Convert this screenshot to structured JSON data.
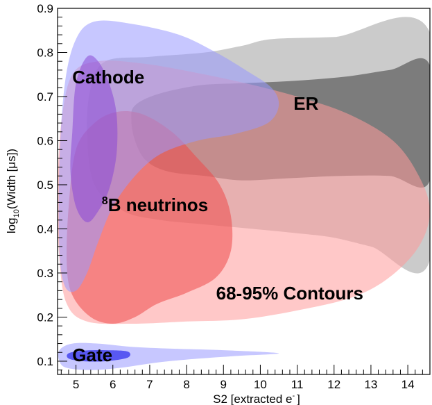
{
  "chart_data": {
    "type": "area",
    "xlabel": "S2 [extracted e",
    "xlabel_sup": "-",
    "xlabel_close": "]",
    "ylabel_prefix": "log",
    "ylabel_sub": "10",
    "ylabel_suffix": "(Width [μs])",
    "xlim": [
      4.5,
      14.6
    ],
    "ylim": [
      0.07,
      0.9
    ],
    "x_ticks": [
      5,
      6,
      7,
      8,
      9,
      10,
      11,
      12,
      13,
      14
    ],
    "y_ticks": [
      0.1,
      0.2,
      0.3,
      0.4,
      0.5,
      0.6,
      0.7,
      0.8,
      0.9
    ],
    "grid": false,
    "series": [
      {
        "name": "ER",
        "contours": [
          {
            "level": "95%",
            "color": "#c2c2c2",
            "opacity": 0.85,
            "points": [
              [
                5.8,
                0.78
              ],
              [
                7.0,
                0.79
              ],
              [
                8.5,
                0.8
              ],
              [
                9.5,
                0.815
              ],
              [
                10.3,
                0.83
              ],
              [
                12.0,
                0.835
              ],
              [
                14.6,
                0.845
              ],
              [
                14.6,
                0.33
              ],
              [
                13.0,
                0.36
              ],
              [
                12.0,
                0.38
              ],
              [
                11.0,
                0.39
              ],
              [
                9.8,
                0.4
              ],
              [
                8.5,
                0.41
              ],
              [
                7.3,
                0.42
              ],
              [
                6.3,
                0.44
              ],
              [
                5.5,
                0.5
              ],
              [
                5.3,
                0.62
              ],
              [
                5.4,
                0.72
              ]
            ]
          },
          {
            "level": "68%",
            "color": "#6f6f6f",
            "opacity": 0.85,
            "points": [
              [
                6.6,
                0.68
              ],
              [
                7.2,
                0.705
              ],
              [
                8.3,
                0.725
              ],
              [
                9.4,
                0.73
              ],
              [
                10.8,
                0.735
              ],
              [
                12.3,
                0.745
              ],
              [
                13.5,
                0.76
              ],
              [
                14.6,
                0.77
              ],
              [
                14.6,
                0.51
              ],
              [
                13.5,
                0.52
              ],
              [
                12.2,
                0.52
              ],
              [
                10.8,
                0.515
              ],
              [
                9.5,
                0.51
              ],
              [
                8.5,
                0.52
              ],
              [
                7.5,
                0.53
              ],
              [
                6.9,
                0.555
              ],
              [
                6.6,
                0.6
              ],
              [
                6.5,
                0.65
              ]
            ]
          }
        ]
      },
      {
        "name": "8B neutrinos",
        "contours": [
          {
            "level": "95%",
            "color": "#ff9a9a",
            "opacity": 0.55,
            "points": [
              [
                4.6,
                0.64
              ],
              [
                4.9,
                0.75
              ],
              [
                5.6,
                0.78
              ],
              [
                6.8,
                0.775
              ],
              [
                8.2,
                0.755
              ],
              [
                9.6,
                0.73
              ],
              [
                11.0,
                0.7
              ],
              [
                12.4,
                0.66
              ],
              [
                13.6,
                0.6
              ],
              [
                14.3,
                0.52
              ],
              [
                14.6,
                0.44
              ],
              [
                14.3,
                0.36
              ],
              [
                13.5,
                0.29
              ],
              [
                12.5,
                0.245
              ],
              [
                11.0,
                0.215
              ],
              [
                9.5,
                0.195
              ],
              [
                8.0,
                0.19
              ],
              [
                6.5,
                0.185
              ],
              [
                5.3,
                0.19
              ],
              [
                4.75,
                0.23
              ],
              [
                4.55,
                0.33
              ],
              [
                4.5,
                0.48
              ]
            ]
          },
          {
            "level": "68%",
            "color": "#ee4a4a",
            "opacity": 0.55,
            "points": [
              [
                5.0,
                0.58
              ],
              [
                5.5,
                0.64
              ],
              [
                6.1,
                0.665
              ],
              [
                6.8,
                0.66
              ],
              [
                7.6,
                0.62
              ],
              [
                8.3,
                0.56
              ],
              [
                8.9,
                0.5
              ],
              [
                9.2,
                0.43
              ],
              [
                9.2,
                0.35
              ],
              [
                8.8,
                0.29
              ],
              [
                8.0,
                0.255
              ],
              [
                7.2,
                0.23
              ],
              [
                6.6,
                0.2
              ],
              [
                6.0,
                0.185
              ],
              [
                5.4,
                0.2
              ],
              [
                4.9,
                0.25
              ],
              [
                4.75,
                0.32
              ],
              [
                4.8,
                0.45
              ]
            ]
          }
        ]
      },
      {
        "name": "Cathode",
        "contours": [
          {
            "level": "95%",
            "color": "#9999ff",
            "opacity": 0.55,
            "points": [
              [
                4.55,
                0.55
              ],
              [
                4.7,
                0.73
              ],
              [
                5.0,
                0.83
              ],
              [
                5.5,
                0.87
              ],
              [
                6.5,
                0.865
              ],
              [
                7.8,
                0.84
              ],
              [
                8.8,
                0.8
              ],
              [
                9.6,
                0.76
              ],
              [
                10.3,
                0.72
              ],
              [
                10.5,
                0.68
              ],
              [
                10.2,
                0.64
              ],
              [
                9.3,
                0.615
              ],
              [
                8.3,
                0.6
              ],
              [
                7.3,
                0.57
              ],
              [
                6.6,
                0.52
              ],
              [
                6.0,
                0.45
              ],
              [
                5.6,
                0.37
              ],
              [
                5.3,
                0.3
              ],
              [
                5.0,
                0.26
              ],
              [
                4.7,
                0.27
              ],
              [
                4.55,
                0.35
              ]
            ]
          },
          {
            "level": "68%",
            "color": "#8a48d6",
            "opacity": 0.55,
            "points": [
              [
                4.9,
                0.62
              ],
              [
                5.0,
                0.73
              ],
              [
                5.3,
                0.79
              ],
              [
                5.6,
                0.78
              ],
              [
                5.9,
                0.73
              ],
              [
                6.1,
                0.66
              ],
              [
                6.1,
                0.57
              ],
              [
                5.9,
                0.49
              ],
              [
                5.6,
                0.44
              ],
              [
                5.3,
                0.415
              ],
              [
                5.0,
                0.45
              ],
              [
                4.85,
                0.53
              ]
            ]
          }
        ]
      },
      {
        "name": "Gate",
        "contours": [
          {
            "level": "95%",
            "color": "#9999ff",
            "opacity": 0.55,
            "points": [
              [
                4.55,
                0.125
              ],
              [
                4.9,
                0.14
              ],
              [
                5.6,
                0.14
              ],
              [
                6.6,
                0.132
              ],
              [
                7.8,
                0.128
              ],
              [
                9.0,
                0.125
              ],
              [
                10.5,
                0.118
              ],
              [
                9.4,
                0.112
              ],
              [
                8.2,
                0.105
              ],
              [
                7.2,
                0.097
              ],
              [
                6.2,
                0.085
              ],
              [
                5.4,
                0.08
              ],
              [
                4.75,
                0.085
              ],
              [
                4.55,
                0.1
              ]
            ]
          },
          {
            "level": "68%",
            "color": "#3333ee",
            "opacity": 0.75,
            "points": [
              [
                4.8,
                0.118
              ],
              [
                5.2,
                0.124
              ],
              [
                5.8,
                0.125
              ],
              [
                6.4,
                0.122
              ],
              [
                6.4,
                0.108
              ],
              [
                5.8,
                0.1
              ],
              [
                5.2,
                0.1
              ],
              [
                4.8,
                0.106
              ]
            ]
          }
        ]
      }
    ],
    "annotations": [
      {
        "text": "Cathode",
        "x": 4.9,
        "y": 0.73
      },
      {
        "text": "ER",
        "x": 10.9,
        "y": 0.67
      },
      {
        "text": "B neutrinos",
        "superscript": "8",
        "x": 5.7,
        "y": 0.44
      },
      {
        "text": "68-95% Contours",
        "x": 8.8,
        "y": 0.24
      },
      {
        "text": "Gate",
        "x": 4.9,
        "y": 0.1
      }
    ]
  }
}
